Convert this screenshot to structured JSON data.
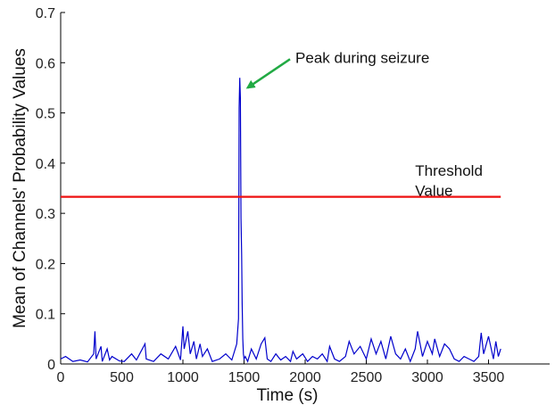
{
  "chart_data": {
    "type": "line",
    "title": "",
    "xlabel": "Time (s)",
    "ylabel": "Mean of Channels' Probability Values",
    "xlim": [
      0,
      4000
    ],
    "ylim": [
      0,
      0.7
    ],
    "xticks": [
      0,
      500,
      1000,
      1500,
      2000,
      2500,
      3000,
      3500
    ],
    "yticks": [
      0,
      0.1,
      0.2,
      0.3,
      0.4,
      0.5,
      0.6,
      0.7
    ],
    "xtick_labels": [
      "0",
      "500",
      "1000",
      "1500",
      "2000",
      "2500",
      "3000",
      "3500"
    ],
    "ytick_labels": [
      "0",
      "0.1",
      "0.2",
      "0.3",
      "0.4",
      "0.5",
      "0.6",
      "0.7"
    ],
    "grid": false,
    "series": [
      {
        "color": "#0000cc",
        "x": [
          0,
          40,
          100,
          160,
          220,
          270,
          280,
          290,
          330,
          340,
          380,
          400,
          420,
          480,
          520,
          580,
          620,
          690,
          700,
          760,
          820,
          880,
          940,
          980,
          1000,
          1010,
          1040,
          1060,
          1090,
          1110,
          1140,
          1160,
          1200,
          1240,
          1300,
          1350,
          1400,
          1440,
          1455,
          1460,
          1465,
          1470,
          1475,
          1480,
          1485,
          1490,
          1495,
          1500,
          1510,
          1530,
          1560,
          1600,
          1640,
          1670,
          1690,
          1720,
          1760,
          1800,
          1840,
          1880,
          1900,
          1930,
          1980,
          2020,
          2060,
          2100,
          2140,
          2180,
          2200,
          2240,
          2280,
          2330,
          2360,
          2400,
          2450,
          2500,
          2540,
          2580,
          2620,
          2660,
          2700,
          2740,
          2780,
          2820,
          2860,
          2900,
          2920,
          2940,
          2960,
          3000,
          3040,
          3060,
          3100,
          3140,
          3180,
          3220,
          3260,
          3300,
          3340,
          3380,
          3420,
          3440,
          3460,
          3500,
          3540,
          3560,
          3580,
          3600
        ],
        "y": [
          0.01,
          0.015,
          0.005,
          0.008,
          0.004,
          0.02,
          0.065,
          0.01,
          0.035,
          0.005,
          0.03,
          0.008,
          0.015,
          0.006,
          0.005,
          0.02,
          0.008,
          0.04,
          0.01,
          0.005,
          0.02,
          0.01,
          0.035,
          0.008,
          0.075,
          0.03,
          0.065,
          0.02,
          0.045,
          0.01,
          0.04,
          0.015,
          0.03,
          0.005,
          0.01,
          0.02,
          0.008,
          0.04,
          0.09,
          0.51,
          0.57,
          0.53,
          0.29,
          0.22,
          0.12,
          0.05,
          0.02,
          0.01,
          0.015,
          0.005,
          0.03,
          0.01,
          0.04,
          0.052,
          0.01,
          0.005,
          0.02,
          0.008,
          0.015,
          0.005,
          0.025,
          0.01,
          0.02,
          0.005,
          0.015,
          0.01,
          0.02,
          0.005,
          0.035,
          0.01,
          0.005,
          0.015,
          0.045,
          0.02,
          0.035,
          0.01,
          0.05,
          0.02,
          0.045,
          0.01,
          0.055,
          0.02,
          0.01,
          0.03,
          0.005,
          0.03,
          0.065,
          0.04,
          0.015,
          0.045,
          0.02,
          0.05,
          0.015,
          0.04,
          0.03,
          0.01,
          0.005,
          0.015,
          0.01,
          0.005,
          0.015,
          0.062,
          0.02,
          0.055,
          0.01,
          0.045,
          0.015,
          0.03
        ]
      },
      {
        "color": "#ee1111",
        "x": [
          0,
          3600
        ],
        "y": [
          0.333,
          0.333
        ]
      }
    ],
    "annotations": [
      {
        "text": "Peak during seizure",
        "arrow_color": "#22aa44",
        "arrow_to": [
          1470,
          0.55
        ],
        "text_at": [
          1920,
          0.6
        ]
      },
      {
        "text": "Threshold",
        "text_at": [
          2900,
          0.375
        ]
      },
      {
        "text": "Value",
        "text_at": [
          2900,
          0.335
        ]
      }
    ]
  }
}
